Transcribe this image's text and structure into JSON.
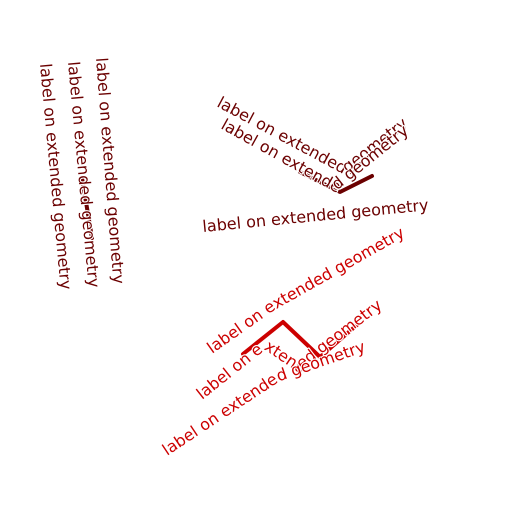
{
  "label_text": "label on extended geometry",
  "colors": {
    "dark_red": "#6b0000",
    "red": "#cc0000"
  },
  "features": [
    {
      "name": "vertical-line",
      "color_key": "dark_red"
    },
    {
      "name": "v-shape-line",
      "color_key": "dark_red"
    },
    {
      "name": "zigzag-line",
      "color_key": "red"
    }
  ]
}
